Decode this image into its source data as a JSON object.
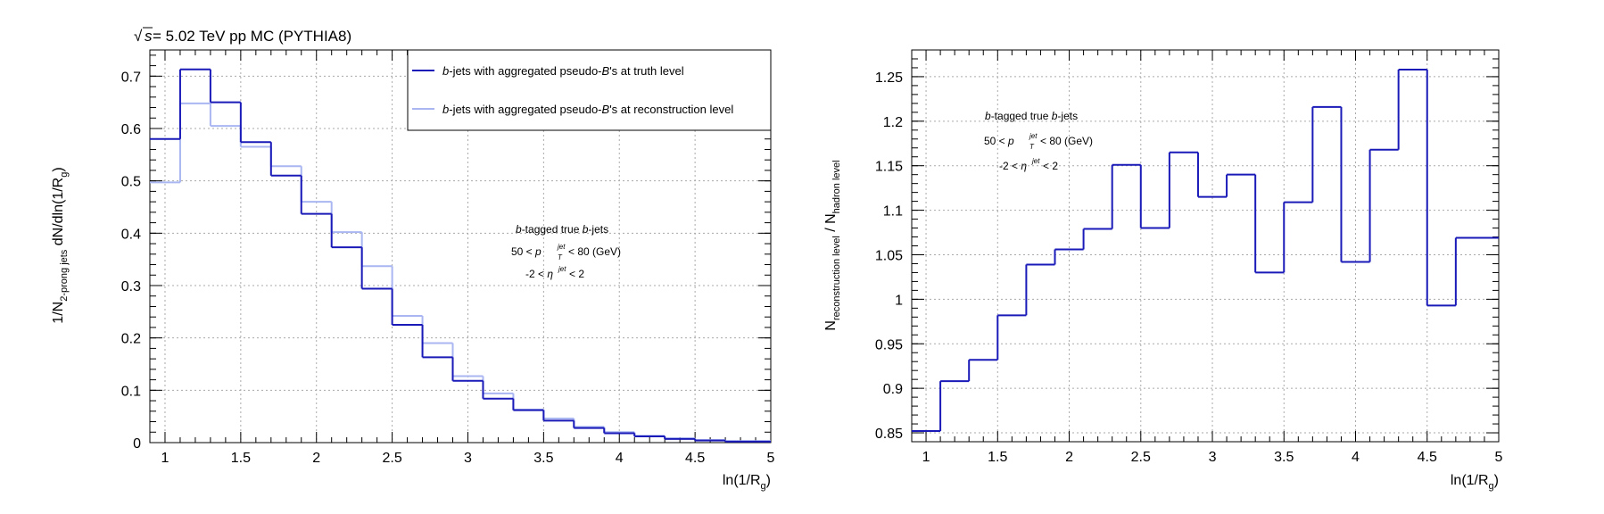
{
  "header": {
    "sqrt_s": "s",
    "energy_text": " = 5.02 TeV pp MC (PYTHIA8)"
  },
  "colors": {
    "truth": "#1a1ab8",
    "reco": "#a9b6f2",
    "ratio": "#1a1ab8",
    "axis": "#000000",
    "grid": "#aaaaaa"
  },
  "left_plot": {
    "legend": {
      "truth_label_b": "b",
      "truth_label_mid": "-jets with aggregated pseudo-",
      "truth_label_B": "B",
      "truth_label_end": "'s at truth level",
      "reco_label_b": "b",
      "reco_label_mid": "-jets with aggregated pseudo-",
      "reco_label_B": "B",
      "reco_label_end": "'s at reconstruction level"
    },
    "annotation": {
      "line1_b": "b",
      "line1_rest": "-tagged true ",
      "line1_b2": "b",
      "line1_end": "-jets",
      "line2_pre": "50 < ",
      "line2_p": "p",
      "line2_sup": "jet",
      "line2_sub": "T",
      "line2_post": " < 80 (GeV)",
      "line3_pre": "-2 < ",
      "line3_eta": "η",
      "line3_sup": "jet",
      "line3_post": " < 2"
    },
    "ylabel_main": "1/N",
    "ylabel_sub": "2-prong jets",
    "ylabel_rest": " dN/dln(1/R",
    "ylabel_sub2": "g",
    "ylabel_end": ")",
    "xlabel_main": "ln(1/R",
    "xlabel_sub": "g",
    "xlabel_end": ")"
  },
  "right_plot": {
    "annotation": {
      "line1_b": "b",
      "line1_rest": "-tagged true ",
      "line1_b2": "b",
      "line1_end": "-jets",
      "line2_pre": "50 < ",
      "line2_p": "p",
      "line2_sup": "jet",
      "line2_sub": "T",
      "line2_post": " < 80 (GeV)",
      "line3_pre": "-2 < ",
      "line3_eta": "η",
      "line3_sup": "jet",
      "line3_post": " < 2"
    },
    "ylabel_n1": "N",
    "ylabel_sub1": "reconstruction level",
    "ylabel_slash": " / N",
    "ylabel_sub2": "hadron level",
    "xlabel_main": "ln(1/R",
    "xlabel_sub": "g",
    "xlabel_end": ")"
  },
  "chart_data": [
    {
      "type": "line",
      "style": "step-histogram",
      "xlim": [
        0.9,
        5.0
      ],
      "ylim": [
        0,
        0.75
      ],
      "xticks": [
        "1",
        "1.5",
        "2",
        "2.5",
        "3",
        "3.5",
        "4",
        "4.5",
        "5"
      ],
      "yticks": [
        "0",
        "0.1",
        "0.2",
        "0.3",
        "0.4",
        "0.5",
        "0.6",
        "0.7"
      ],
      "grid": true,
      "legend_position": "top-right",
      "bin_edges": [
        0.9,
        1.1,
        1.3,
        1.5,
        1.7,
        1.9,
        2.1,
        2.3,
        2.5,
        2.7,
        2.9,
        3.1,
        3.3,
        3.5,
        3.7,
        3.9,
        4.1,
        4.3,
        4.5,
        4.7,
        5.0
      ],
      "series": [
        {
          "name": "b-jets with aggregated pseudo-B's at truth level",
          "values": [
            0.58,
            0.713,
            0.65,
            0.574,
            0.51,
            0.437,
            0.373,
            0.294,
            0.225,
            0.163,
            0.118,
            0.084,
            0.062,
            0.042,
            0.028,
            0.018,
            0.012,
            0.007,
            0.004,
            0.002
          ]
        },
        {
          "name": "b-jets with aggregated pseudo-B's at reconstruction level",
          "values": [
            0.497,
            0.648,
            0.605,
            0.565,
            0.528,
            0.46,
            0.402,
            0.337,
            0.242,
            0.19,
            0.127,
            0.094,
            0.063,
            0.046,
            0.03,
            0.02,
            0.013,
            0.008,
            0.005,
            0.003
          ]
        }
      ]
    },
    {
      "type": "line",
      "style": "step-histogram",
      "xlim": [
        0.9,
        5.0
      ],
      "ylim": [
        0.84,
        1.28
      ],
      "xticks": [
        "1",
        "1.5",
        "2",
        "2.5",
        "3",
        "3.5",
        "4",
        "4.5",
        "5"
      ],
      "yticks": [
        "0.85",
        "0.9",
        "0.95",
        "1",
        "1.05",
        "1.1",
        "1.15",
        "1.2",
        "1.25"
      ],
      "grid": true,
      "bin_edges": [
        0.9,
        1.1,
        1.3,
        1.5,
        1.7,
        1.9,
        2.1,
        2.3,
        2.5,
        2.7,
        2.9,
        3.1,
        3.3,
        3.5,
        3.7,
        3.9,
        4.1,
        4.3,
        4.5,
        4.7,
        5.0
      ],
      "series": [
        {
          "values": [
            0.852,
            0.908,
            0.932,
            0.982,
            1.039,
            1.056,
            1.079,
            1.151,
            1.08,
            1.165,
            1.115,
            1.14,
            1.03,
            1.109,
            1.216,
            1.042,
            1.168,
            1.258,
            0.993,
            1.069
          ]
        }
      ]
    }
  ]
}
